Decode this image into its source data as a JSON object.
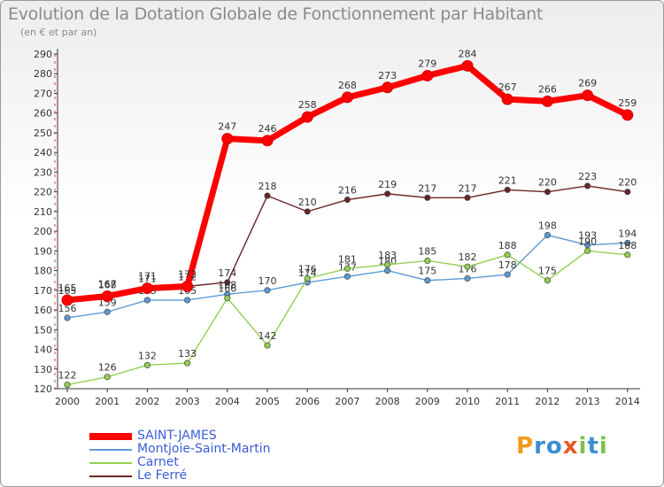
{
  "title": "Evolution de la Dotation Globale de Fonctionnement par Habitant",
  "subtitle": "(en € et par an)",
  "logo": {
    "text": "Proxiti",
    "p": "P",
    "ro": "ro",
    "x": "x",
    "i1": "i",
    "t": "t",
    "i2": "i"
  },
  "chart_data": {
    "type": "line",
    "title": "Evolution de la Dotation Globale de Fonctionnement par Habitant",
    "subtitle": "(en € et par an)",
    "x": [
      "2000",
      "2001",
      "2002",
      "2003",
      "2004",
      "2005",
      "2006",
      "2007",
      "2008",
      "2009",
      "2010",
      "2011",
      "2012",
      "2013",
      "2014"
    ],
    "ylim": [
      120,
      290
    ],
    "yticks": [
      120,
      130,
      140,
      150,
      160,
      170,
      180,
      190,
      200,
      210,
      220,
      230,
      240,
      250,
      260,
      270,
      280,
      290
    ],
    "grid": false,
    "legend_position": "bottom-left",
    "series": [
      {
        "name": "Le Ferré",
        "color": "#6b2424",
        "values": [
          165,
          168,
          171,
          172,
          174,
          218,
          210,
          216,
          219,
          217,
          217,
          221,
          220,
          223,
          220
        ]
      },
      {
        "name": "Montjoie-Saint-Martin",
        "color": "#5b9bd5",
        "values": [
          156,
          159,
          165,
          165,
          168,
          170,
          174,
          177,
          180,
          175,
          176,
          178,
          198,
          193,
          194
        ]
      },
      {
        "name": "Carnet",
        "color": "#92d050",
        "values": [
          122,
          126,
          132,
          133,
          166,
          142,
          176,
          181,
          183,
          185,
          182,
          188,
          175,
          190,
          188
        ]
      },
      {
        "name": "SAINT-JAMES",
        "color": "#ff0000",
        "values": [
          165,
          167,
          171,
          172,
          247,
          246,
          258,
          268,
          273,
          279,
          284,
          267,
          266,
          269,
          259
        ]
      }
    ],
    "legend": [
      {
        "name": "SAINT-JAMES",
        "color": "#ff0000",
        "text_color": "#3a5cd6"
      },
      {
        "name": "Montjoie-Saint-Martin",
        "color": "#5b9bd5",
        "text_color": "#3a5cd6"
      },
      {
        "name": "Carnet",
        "color": "#92d050",
        "text_color": "#3a5cd6"
      },
      {
        "name": "Le Ferré",
        "color": "#6b2424",
        "text_color": "#3a5cd6"
      }
    ]
  }
}
